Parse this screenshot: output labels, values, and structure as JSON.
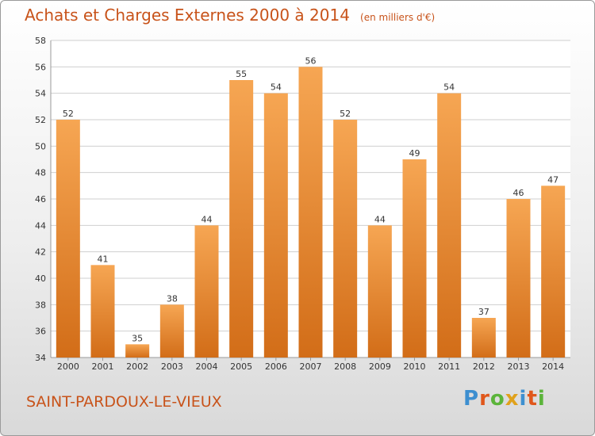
{
  "chart_data": {
    "type": "bar",
    "title": "Achats et Charges Externes 2000 à 2014",
    "subtitle": "(en milliers d'€)",
    "categories": [
      "2000",
      "2001",
      "2002",
      "2003",
      "2004",
      "2005",
      "2006",
      "2007",
      "2008",
      "2009",
      "2010",
      "2011",
      "2012",
      "2013",
      "2014"
    ],
    "values": [
      52,
      41,
      35,
      38,
      44,
      55,
      54,
      56,
      52,
      44,
      49,
      54,
      37,
      46,
      47
    ],
    "data_labels": [
      "52",
      "41",
      "35",
      "38",
      "44",
      "55",
      "54",
      "56",
      "52",
      "44",
      "49",
      "54",
      "37",
      "46",
      "47"
    ],
    "ylim": [
      34,
      58
    ],
    "yticks": [
      "34",
      "36",
      "38",
      "40",
      "42",
      "44",
      "46",
      "48",
      "50",
      "52",
      "54",
      "56",
      "58"
    ],
    "xlabel": "",
    "ylabel": "",
    "grid": true,
    "legend": "none",
    "colors": {
      "bar_light": "#f6a653",
      "bar_dark": "#d26d18",
      "grid": "#cfcfcf",
      "title": "#c8531a"
    }
  },
  "footer": {
    "location": "SAINT-PARDOUX-LE-VIEUX",
    "brand": "Proxiti",
    "brand_letter_colors": [
      "#3d8fd0",
      "#e0571b",
      "#5bb43a",
      "#e0a11b",
      "#3d8fd0",
      "#e0571b",
      "#5bb43a"
    ]
  }
}
